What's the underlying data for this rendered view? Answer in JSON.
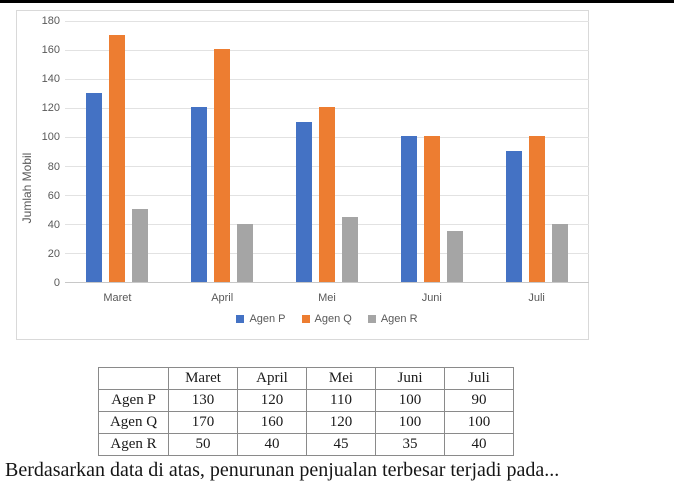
{
  "page": {
    "question_text": "Berdasarkan data di atas, penurunan penjualan terbesar terjadi pada..."
  },
  "chart_data": {
    "type": "bar",
    "title": "",
    "xlabel": "",
    "ylabel": "Jumlah Mobil",
    "categories": [
      "Maret",
      "April",
      "Mei",
      "Juni",
      "Juli"
    ],
    "series": [
      {
        "name": "Agen P",
        "color": "#4472C4",
        "values": [
          130,
          120,
          110,
          100,
          90
        ]
      },
      {
        "name": "Agen Q",
        "color": "#ED7D31",
        "values": [
          170,
          160,
          120,
          100,
          100
        ]
      },
      {
        "name": "Agen R",
        "color": "#A5A5A5",
        "values": [
          50,
          40,
          45,
          35,
          40
        ]
      }
    ],
    "ylim": [
      0,
      180
    ],
    "yticks": [
      0,
      20,
      40,
      60,
      80,
      100,
      120,
      140,
      160,
      180
    ],
    "grid": true,
    "legend_position": "bottom"
  },
  "table": {
    "header": [
      "",
      "Maret",
      "April",
      "Mei",
      "Juni",
      "Juli"
    ],
    "rows": [
      {
        "label": "Agen P",
        "values": [
          "130",
          "120",
          "110",
          "100",
          "90"
        ]
      },
      {
        "label": "Agen Q",
        "values": [
          "170",
          "160",
          "120",
          "100",
          "100"
        ]
      },
      {
        "label": "Agen R",
        "values": [
          "50",
          "40",
          "45",
          "35",
          "40"
        ]
      }
    ]
  }
}
